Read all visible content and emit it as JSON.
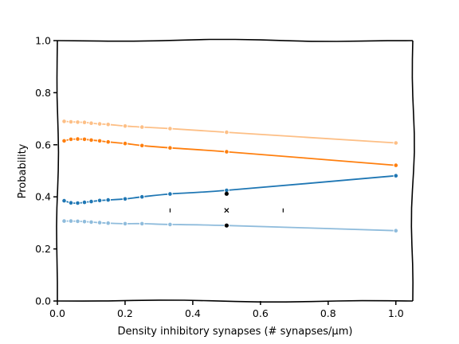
{
  "chart_data": {
    "type": "line",
    "title": "",
    "xlabel": "Density inhibitory synapses (# synapses/μm)",
    "ylabel": "Probability",
    "xlim": [
      0.0,
      1.05
    ],
    "ylim": [
      0.0,
      1.0
    ],
    "xticks": [
      0.0,
      0.2,
      0.4,
      0.6,
      0.8,
      1.0
    ],
    "xtick_labels": [
      "0.0",
      "0.2",
      "0.4",
      "0.6",
      "0.8",
      "1.0"
    ],
    "yticks": [
      0.0,
      0.2,
      0.4,
      0.6,
      0.8,
      1.0
    ],
    "ytick_labels": [
      "0.0",
      "0.2",
      "0.4",
      "0.6",
      "0.8",
      "1.0"
    ],
    "grid": false,
    "legend": "none",
    "style": "hand-drawn (xkcd)",
    "series": [
      {
        "color": "#fdbf86",
        "x": [
          0.02,
          0.04,
          0.06,
          0.08,
          0.1,
          0.125,
          0.15,
          0.2,
          0.25,
          0.333,
          0.5,
          1.0
        ],
        "y": [
          0.69,
          0.688,
          0.687,
          0.686,
          0.683,
          0.68,
          0.678,
          0.672,
          0.668,
          0.662,
          0.648,
          0.607
        ]
      },
      {
        "color": "#ff7f0e",
        "x": [
          0.02,
          0.04,
          0.06,
          0.08,
          0.1,
          0.125,
          0.15,
          0.2,
          0.25,
          0.333,
          0.5,
          1.0
        ],
        "y": [
          0.615,
          0.621,
          0.622,
          0.621,
          0.618,
          0.615,
          0.611,
          0.605,
          0.597,
          0.588,
          0.573,
          0.521
        ]
      },
      {
        "color": "#1f77b4",
        "x": [
          0.02,
          0.04,
          0.06,
          0.08,
          0.1,
          0.125,
          0.15,
          0.2,
          0.25,
          0.333,
          0.5,
          1.0
        ],
        "y": [
          0.385,
          0.377,
          0.376,
          0.379,
          0.382,
          0.386,
          0.388,
          0.392,
          0.4,
          0.411,
          0.425,
          0.481
        ]
      },
      {
        "color": "#8fbcdc",
        "x": [
          0.02,
          0.04,
          0.06,
          0.08,
          0.1,
          0.125,
          0.15,
          0.2,
          0.25,
          0.333,
          0.5,
          1.0
        ],
        "y": [
          0.307,
          0.307,
          0.306,
          0.305,
          0.303,
          0.301,
          0.299,
          0.297,
          0.297,
          0.294,
          0.29,
          0.27
        ]
      }
    ],
    "markers": [
      {
        "symbol": "dot",
        "color": "#000000",
        "x": 0.5,
        "y": 0.412
      },
      {
        "symbol": "dot",
        "color": "#000000",
        "x": 0.5,
        "y": 0.29
      },
      {
        "symbol": "x",
        "color": "#000000",
        "x": 0.5,
        "y": 0.348
      },
      {
        "symbol": "vtick",
        "color": "#000000",
        "x": 0.333,
        "y": 0.348
      },
      {
        "symbol": "vtick",
        "color": "#000000",
        "x": 0.667,
        "y": 0.348
      }
    ]
  }
}
